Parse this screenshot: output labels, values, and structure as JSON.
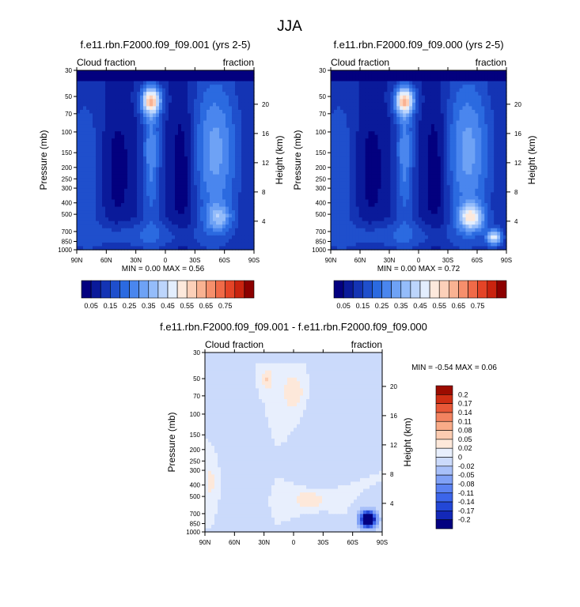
{
  "page": {
    "title": "JJA"
  },
  "panels": [
    {
      "title": "f.e11.rbn.F2000.f09_f09.001 (yrs 2-5)",
      "left_label": "Cloud fraction",
      "right_label": "fraction",
      "y_label": "Pressure (mb)",
      "y2_label": "Height (km)",
      "stats": "MIN =   0.00   MAX =   0.56"
    },
    {
      "title": "f.e11.rbn.F2000.f09_f09.000 (yrs 2-5)",
      "left_label": "Cloud fraction",
      "right_label": "fraction",
      "y_label": "Pressure (mb)",
      "y2_label": "Height (km)",
      "stats": "MIN =   0.00   MAX =   0.72"
    },
    {
      "title": "f.e11.rbn.F2000.f09_f09.001 - f.e11.rbn.F2000.f09_f09.000",
      "left_label": "Cloud fraction",
      "right_label": "fraction",
      "y_label": "Pressure (mb)",
      "y2_label": "Height (km)",
      "stats": "MIN =  -0.54   MAX =   0.06"
    }
  ],
  "colors": {
    "seq": [
      "#03007f",
      "#0a1a9a",
      "#1434b4",
      "#1f4fcc",
      "#2b6ae0",
      "#4a86ee",
      "#6ea2f5",
      "#94bcfa",
      "#bcd5fc",
      "#e3eefd",
      "#fde9dc",
      "#fcd0b9",
      "#f9b292",
      "#f68f6c",
      "#f06a48",
      "#e44427",
      "#c9230f",
      "#8c0000"
    ],
    "div": [
      "#030080",
      "#1328b8",
      "#2347d6",
      "#3c65ea",
      "#5b82f2",
      "#80a1f6",
      "#a8c0f9",
      "#cbdafb",
      "#e8effd",
      "#fde8da",
      "#fcccb1",
      "#f9ab88",
      "#f38360",
      "#e85838",
      "#cf2e14",
      "#9c0b00"
    ]
  },
  "chart_data": [
    {
      "type": "heatmap",
      "x_ticks": [
        "90N",
        "60N",
        "30N",
        "0",
        "30S",
        "60S",
        "90S"
      ],
      "y_ticks": [
        "30",
        "50",
        "70",
        "100",
        "150",
        "200",
        "250",
        "300",
        "400",
        "500",
        "700",
        "850",
        "1000"
      ],
      "y2_ticks": [
        "20",
        "16",
        "12",
        "8",
        "4"
      ],
      "colorbar_labels": [
        "0.05",
        "0.15",
        "0.25",
        "0.35",
        "0.45",
        "0.55",
        "0.65",
        "0.75"
      ],
      "min": 0.0,
      "max": 0.56
    },
    {
      "type": "heatmap",
      "x_ticks": [
        "90N",
        "60N",
        "30N",
        "0",
        "30S",
        "60S",
        "90S"
      ],
      "y_ticks": [
        "30",
        "50",
        "70",
        "100",
        "150",
        "200",
        "250",
        "300",
        "400",
        "500",
        "700",
        "850",
        "1000"
      ],
      "y2_ticks": [
        "20",
        "16",
        "12",
        "8",
        "4"
      ],
      "colorbar_labels": [
        "0.05",
        "0.15",
        "0.25",
        "0.35",
        "0.45",
        "0.55",
        "0.65",
        "0.75"
      ],
      "min": 0.0,
      "max": 0.72
    },
    {
      "type": "heatmap",
      "x_ticks": [
        "90N",
        "60N",
        "30N",
        "0",
        "30S",
        "60S",
        "90S"
      ],
      "y_ticks": [
        "30",
        "50",
        "70",
        "100",
        "150",
        "200",
        "250",
        "300",
        "400",
        "500",
        "700",
        "850",
        "1000"
      ],
      "y2_ticks": [
        "20",
        "16",
        "12",
        "8",
        "4"
      ],
      "colorbar_labels": [
        "0.2",
        "0.17",
        "0.14",
        "0.11",
        "0.08",
        "0.05",
        "0.02",
        "0",
        "-0.02",
        "-0.05",
        "-0.08",
        "-0.11",
        "-0.14",
        "-0.17",
        "-0.2"
      ],
      "min": -0.54,
      "max": 0.06
    }
  ]
}
